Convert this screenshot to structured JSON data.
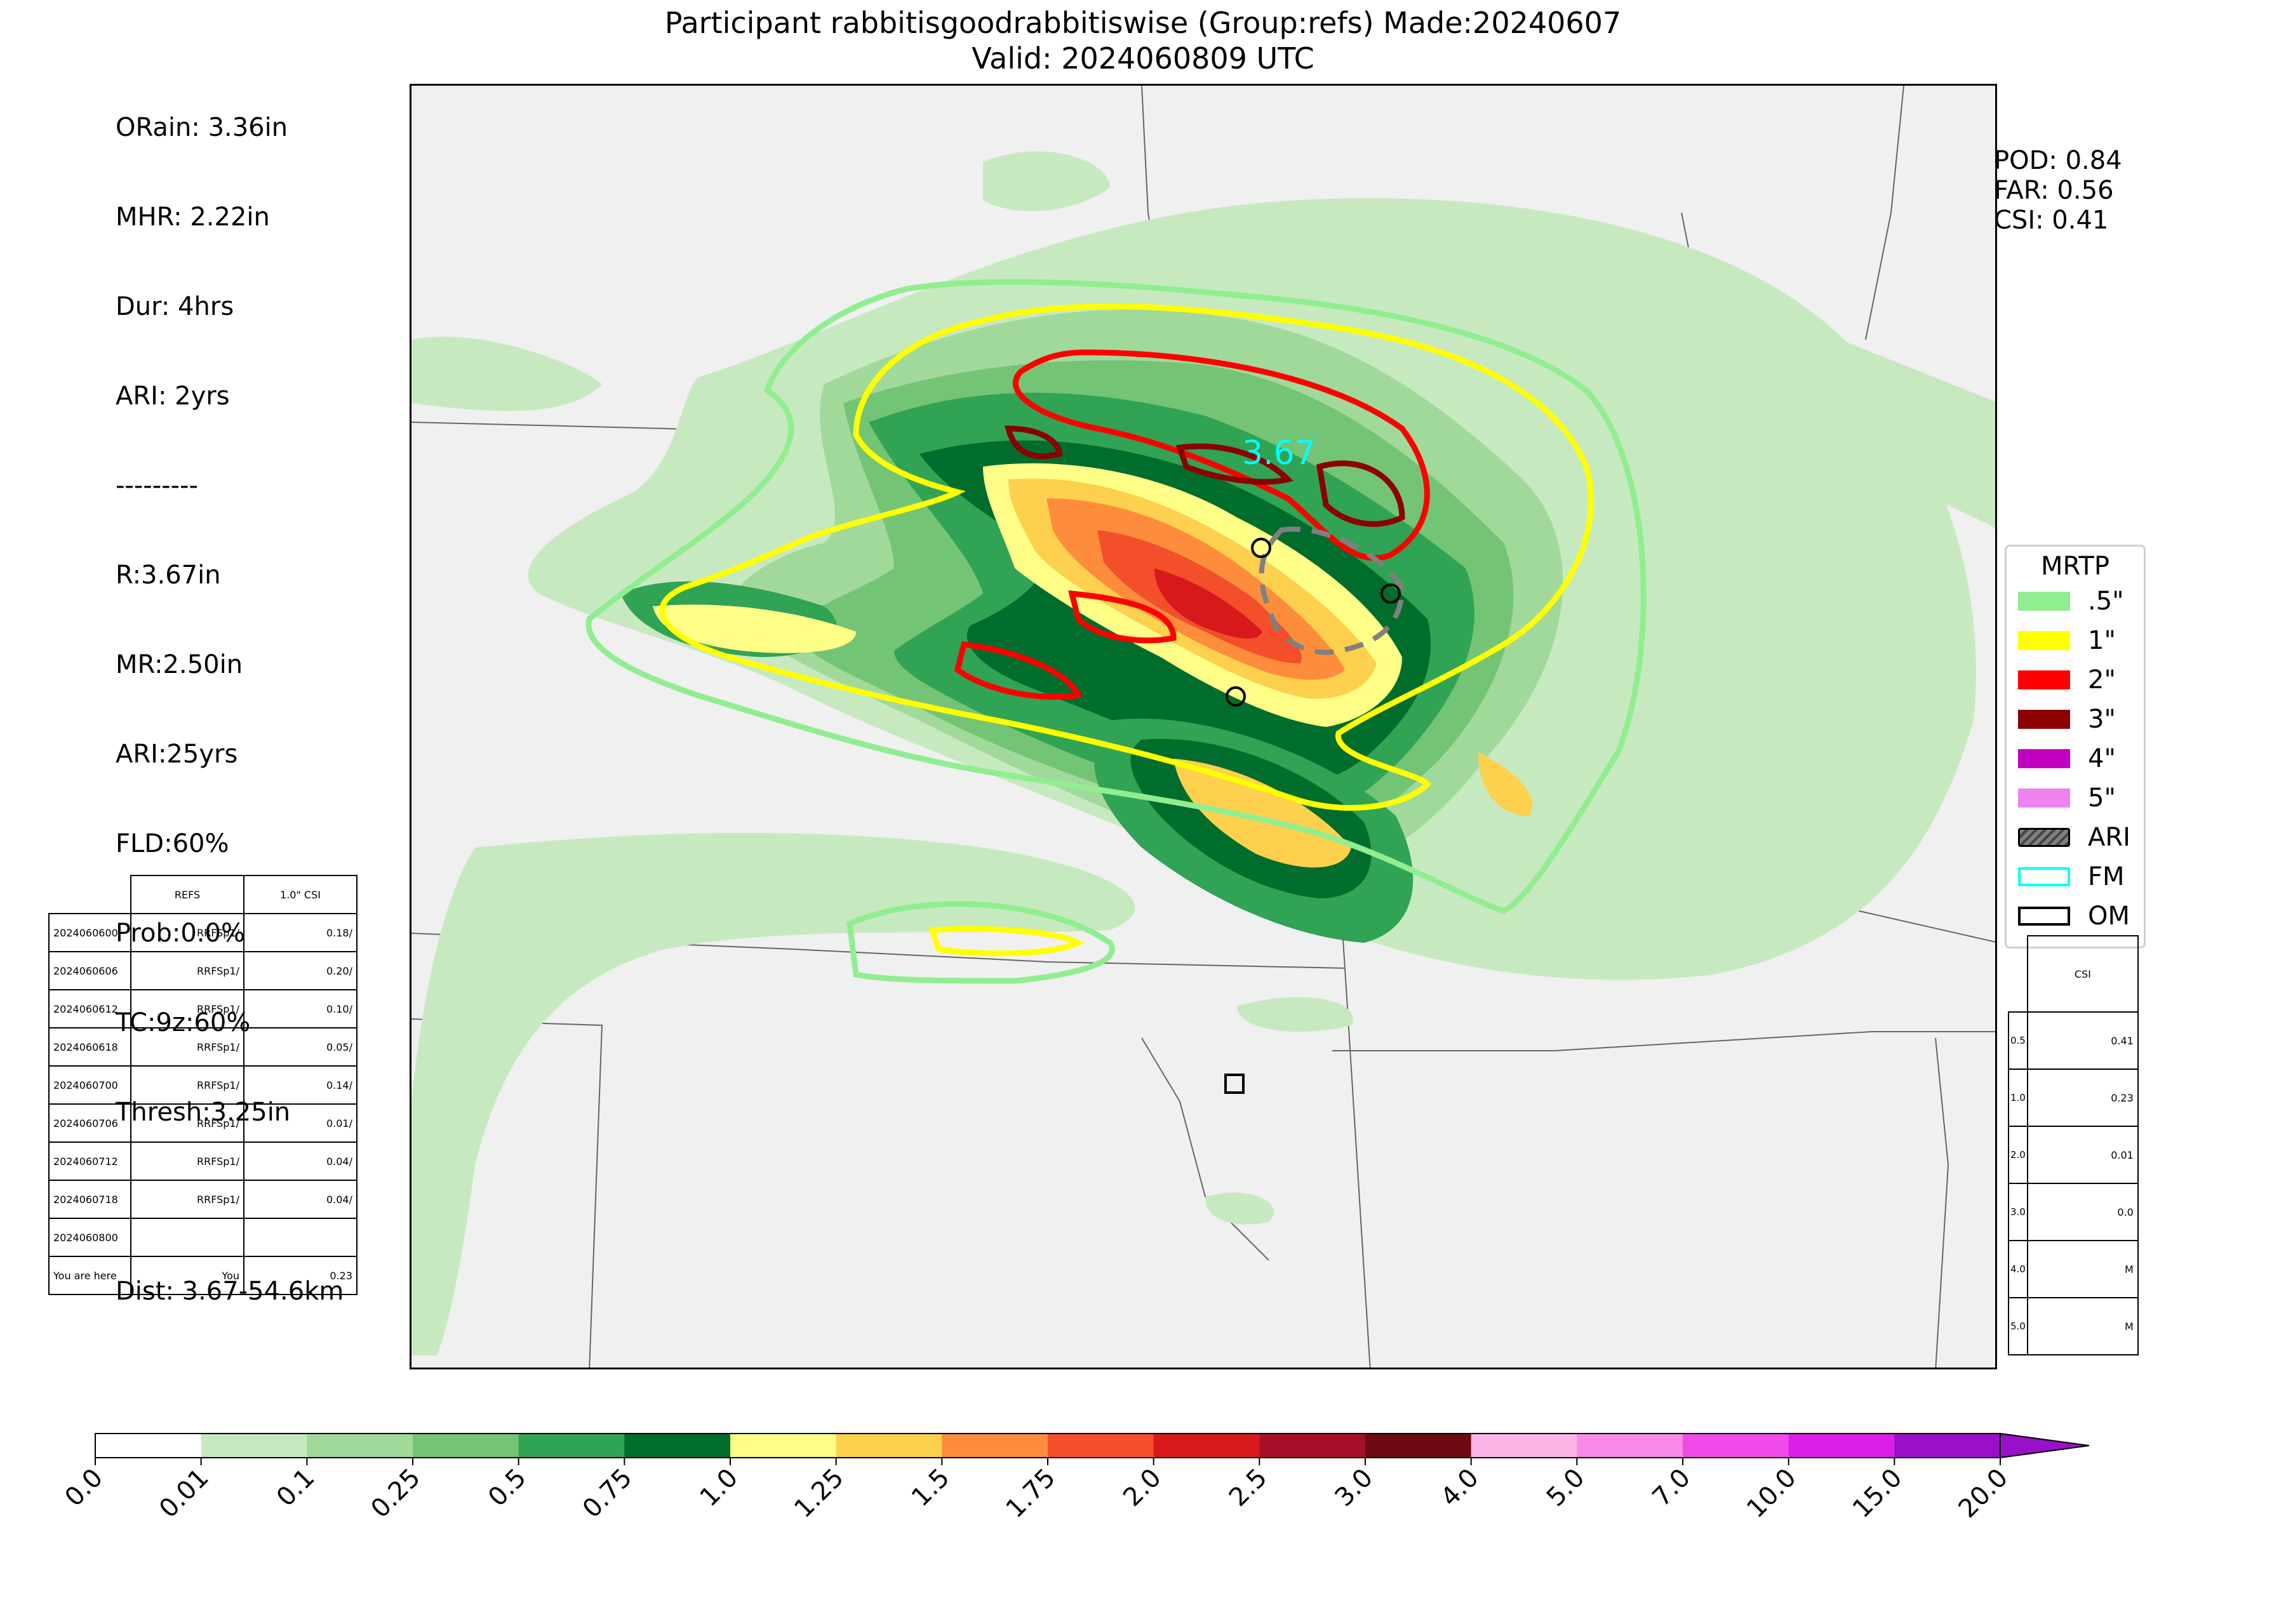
{
  "header": {
    "title_line1": "Participant rabbitisgoodrabbitiswise (Group:refs) Made:20240607",
    "title_line2": "Valid: 2024060809 UTC"
  },
  "stats_left": {
    "lines": [
      "ORain: 3.36in",
      "MHR: 2.22in",
      "Dur: 4hrs",
      "ARI: 2yrs",
      "---------",
      "R:3.67in",
      "MR:2.50in",
      "ARI:25yrs",
      "FLD:60%",
      "Prob:0.0%",
      "TC:9z:60%",
      "Thresh:3.25in",
      "",
      "Dist: 3.67-54.6km"
    ]
  },
  "stats_right": {
    "pod": "POD: 0.84",
    "far": "FAR: 0.56",
    "csi": "CSI: 0.41"
  },
  "map": {
    "max_label": "3.67",
    "contour_colors": {
      "c05": "#90ee90",
      "c1": "#ffff00",
      "c2": "#ff0000",
      "c3": "#8b0000",
      "ari": "#808080",
      "fm": "#00ffff"
    }
  },
  "legend": {
    "title": "MRTP",
    "items": [
      {
        "label": ".5\"",
        "color": "#90ee90"
      },
      {
        "label": "1\"",
        "color": "#ffff00"
      },
      {
        "label": "2\"",
        "color": "#ff0000"
      },
      {
        "label": "3\"",
        "color": "#8b0000"
      },
      {
        "label": "4\"",
        "color": "#c000c0"
      },
      {
        "label": "5\"",
        "color": "#ee82ee"
      },
      {
        "label": "ARI",
        "color": "#808080"
      },
      {
        "label": "FM",
        "color": "#00ffff"
      },
      {
        "label": "OM",
        "color": "#ffffff"
      }
    ]
  },
  "refs_table": {
    "header": [
      "",
      "REFS",
      "1.0\" CSI"
    ],
    "rows": [
      [
        "2024060600",
        "RRFSp1/",
        "0.18/"
      ],
      [
        "2024060606",
        "RRFSp1/",
        "0.20/"
      ],
      [
        "2024060612",
        "RRFSp1/",
        "0.10/"
      ],
      [
        "2024060618",
        "RRFSp1/",
        "0.05/"
      ],
      [
        "2024060700",
        "RRFSp1/",
        "0.14/"
      ],
      [
        "2024060706",
        "RRFSp1/",
        "0.01/"
      ],
      [
        "2024060712",
        "RRFSp1/",
        "0.04/"
      ],
      [
        "2024060718",
        "RRFSp1/",
        "0.04/"
      ],
      [
        "2024060800",
        "",
        ""
      ],
      [
        "You are here",
        "You",
        "0.23"
      ]
    ]
  },
  "csi_table": {
    "header": [
      "",
      "CSI"
    ],
    "rows": [
      [
        "0.5",
        "0.41"
      ],
      [
        "1.0",
        "0.23"
      ],
      [
        "2.0",
        "0.01"
      ],
      [
        "3.0",
        "0.0"
      ],
      [
        "4.0",
        "M"
      ],
      [
        "5.0",
        "M"
      ]
    ]
  },
  "colorbar": {
    "ticks": [
      "0.0",
      "0.01",
      "0.1",
      "0.25",
      "0.5",
      "0.75",
      "1.0",
      "1.25",
      "1.5",
      "1.75",
      "2.0",
      "2.5",
      "3.0",
      "4.0",
      "5.0",
      "7.0",
      "10.0",
      "15.0",
      "20.0"
    ],
    "colors": [
      "#ffffff",
      "#c7e9c0",
      "#a1d99b",
      "#74c476",
      "#31a354",
      "#006d2c",
      "#ffff88",
      "#fdd04e",
      "#fd8d3c",
      "#f24f2a",
      "#d7191c",
      "#a50f27",
      "#6e0a14",
      "#fbb4e6",
      "#f98ae8",
      "#f04ae8",
      "#dc1fe8",
      "#9a10c8"
    ]
  }
}
